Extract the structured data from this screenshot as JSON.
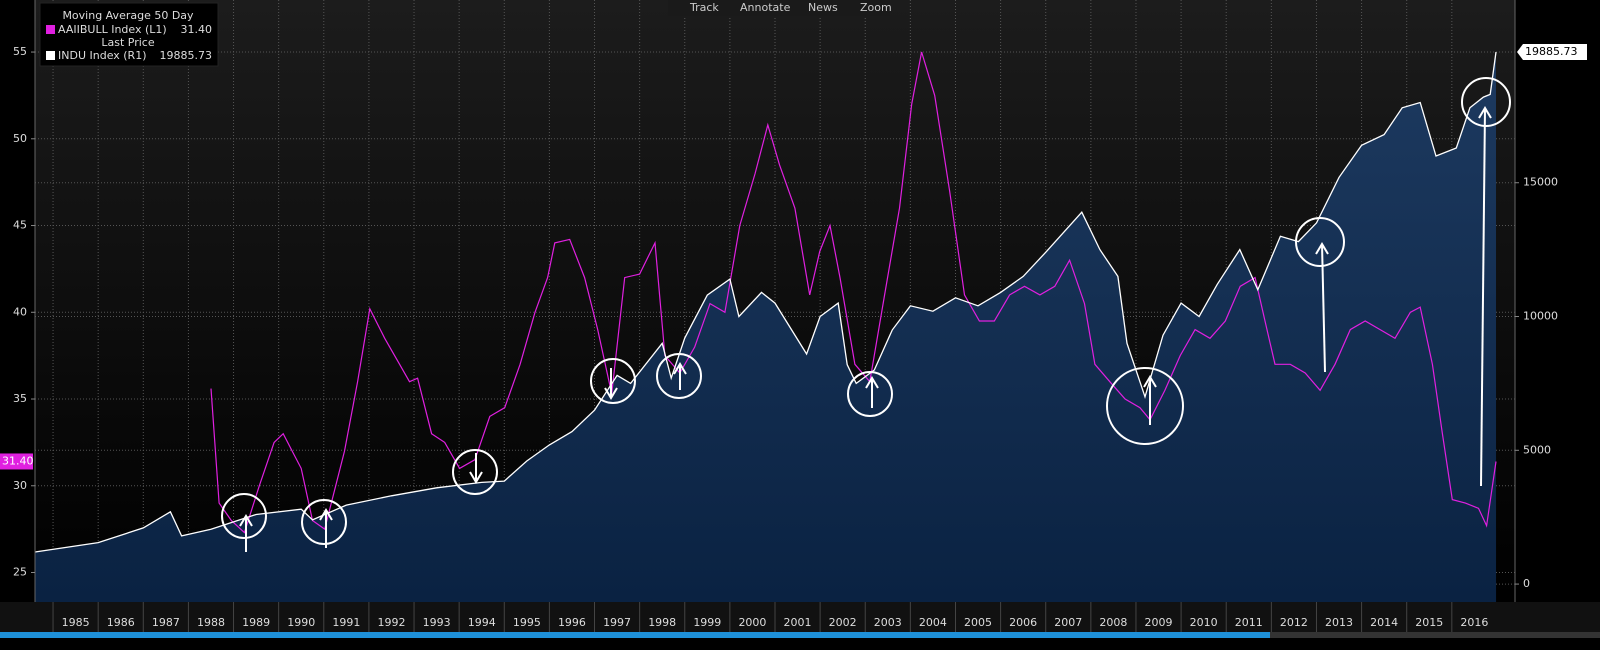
{
  "toolbar": [
    "Track",
    "Annotate",
    "News",
    "Zoom"
  ],
  "chart_data": {
    "type": "line",
    "legend": {
      "title": "Moving Average 50 Day",
      "subtitle": "Last Price"
    },
    "xlim": [
      1984.6,
      2017.4
    ],
    "xticks": [
      1985,
      1986,
      1987,
      1988,
      1989,
      1990,
      1991,
      1992,
      1993,
      1994,
      1995,
      1996,
      1997,
      1998,
      1999,
      2000,
      2001,
      2002,
      2003,
      2004,
      2005,
      2006,
      2007,
      2008,
      2009,
      2010,
      2011,
      2012,
      2013,
      2014,
      2015,
      2016
    ],
    "ylim": [
      23.3,
      58
    ],
    "yticks": [
      25,
      30,
      35,
      40,
      45,
      50,
      55
    ],
    "y2lim": [
      -670,
      21830
    ],
    "y2ticks": [
      0,
      5000,
      10000,
      15000
    ],
    "grid": true,
    "series": [
      {
        "name": "AAIIBULL Index  (L1)",
        "color": "#e020e0",
        "last_label": "31.40",
        "x": [
          1988.5,
          1988.68,
          1988.95,
          1989.24,
          1989.57,
          1989.9,
          1990.1,
          1990.3,
          1990.5,
          1990.75,
          1991.02,
          1991.46,
          1991.75,
          1992.02,
          1992.35,
          1992.68,
          1992.9,
          1993.08,
          1993.39,
          1993.68,
          1994.01,
          1994.35,
          1994.68,
          1995.01,
          1995.35,
          1995.68,
          1995.96,
          1996.12,
          1996.45,
          1996.78,
          1997.07,
          1997.38,
          1997.67,
          1998.0,
          1998.34,
          1998.56,
          1998.89,
          1999.22,
          1999.56,
          1999.89,
          2000.22,
          2000.56,
          2000.84,
          2001.1,
          2001.44,
          2001.77,
          2001.99,
          2002.22,
          2002.44,
          2002.77,
          2003.1,
          2003.43,
          2003.76,
          2004.03,
          2004.25,
          2004.54,
          2004.87,
          2005.2,
          2005.53,
          2005.86,
          2006.2,
          2006.53,
          2006.87,
          2007.2,
          2007.53,
          2007.86,
          2008.09,
          2008.42,
          2008.76,
          2009.09,
          2009.31,
          2009.64,
          2009.98,
          2010.31,
          2010.64,
          2010.98,
          2011.31,
          2011.64,
          2011.86,
          2012.08,
          2012.42,
          2012.75,
          2013.08,
          2013.41,
          2013.75,
          2014.08,
          2014.41,
          2014.74,
          2015.08,
          2015.3,
          2015.57,
          2015.79,
          2016.01,
          2016.3,
          2016.59,
          2016.77,
          2016.98
        ],
        "values": [
          35.6,
          29,
          28,
          27.3,
          30,
          32.5,
          33,
          32,
          31,
          28,
          27.5,
          32,
          36,
          40.2,
          38.5,
          37,
          36,
          36.2,
          33,
          32.5,
          31,
          31.5,
          34,
          34.5,
          37,
          40,
          42,
          44,
          44.2,
          42,
          39,
          35.3,
          42,
          42.2,
          44,
          37.5,
          36.5,
          38,
          40.5,
          40,
          45,
          48,
          50.8,
          48.5,
          46,
          41,
          43.5,
          45,
          42,
          37,
          36,
          41,
          46,
          52,
          55,
          52.5,
          47,
          41,
          39.5,
          39.5,
          41,
          41.5,
          41,
          41.5,
          43,
          40.5,
          37,
          36,
          35,
          34.5,
          33.8,
          35.5,
          37.5,
          39,
          38.5,
          39.5,
          41.5,
          42,
          39.5,
          37,
          37,
          36.5,
          35.5,
          37,
          39,
          39.5,
          39,
          38.5,
          40,
          40.3,
          37,
          33,
          29.2,
          29,
          28.7,
          27.7,
          31.4
        ]
      },
      {
        "name": "INDU Index  (R1)",
        "color": "#ffffff",
        "axis": "y2",
        "x": [
          1984.6,
          1986.0,
          1987.0,
          1987.6,
          1987.85,
          1988.5,
          1989.5,
          1990.5,
          1990.75,
          1991.5,
          1992.5,
          1993.5,
          1994.5,
          1995.0,
          1995.5,
          1996.0,
          1996.5,
          1997.0,
          1997.5,
          1997.8,
          1998.5,
          1998.7,
          1999.0,
          1999.5,
          2000.0,
          2000.2,
          2000.7,
          2001.0,
          2001.7,
          2002.0,
          2002.4,
          2002.6,
          2002.8,
          2003.2,
          2003.6,
          2004.0,
          2004.5,
          2005.0,
          2005.5,
          2006.0,
          2006.5,
          2007.0,
          2007.8,
          2008.2,
          2008.6,
          2008.8,
          2009.2,
          2009.6,
          2010.0,
          2010.4,
          2010.8,
          2011.3,
          2011.7,
          2012.2,
          2012.6,
          2013.0,
          2013.5,
          2014.0,
          2014.5,
          2014.9,
          2015.3,
          2015.65,
          2016.1,
          2016.4,
          2016.7,
          2016.85,
          2016.98
        ],
        "values": [
          1200,
          1550,
          2100,
          2700,
          1800,
          2050,
          2600,
          2800,
          2400,
          2950,
          3300,
          3600,
          3800,
          3850,
          4600,
          5200,
          5700,
          6500,
          7800,
          7500,
          9000,
          7700,
          9200,
          10800,
          11400,
          10000,
          10900,
          10500,
          8600,
          10000,
          10500,
          8200,
          7500,
          8000,
          9500,
          10400,
          10200,
          10700,
          10400,
          10900,
          11500,
          12400,
          13900,
          12500,
          11500,
          9000,
          7000,
          9300,
          10500,
          10000,
          11200,
          12500,
          11000,
          13000,
          12800,
          13500,
          15200,
          16400,
          16800,
          17800,
          18000,
          16000,
          16300,
          17800,
          18200,
          18300,
          19885.73
        ]
      }
    ]
  }
}
